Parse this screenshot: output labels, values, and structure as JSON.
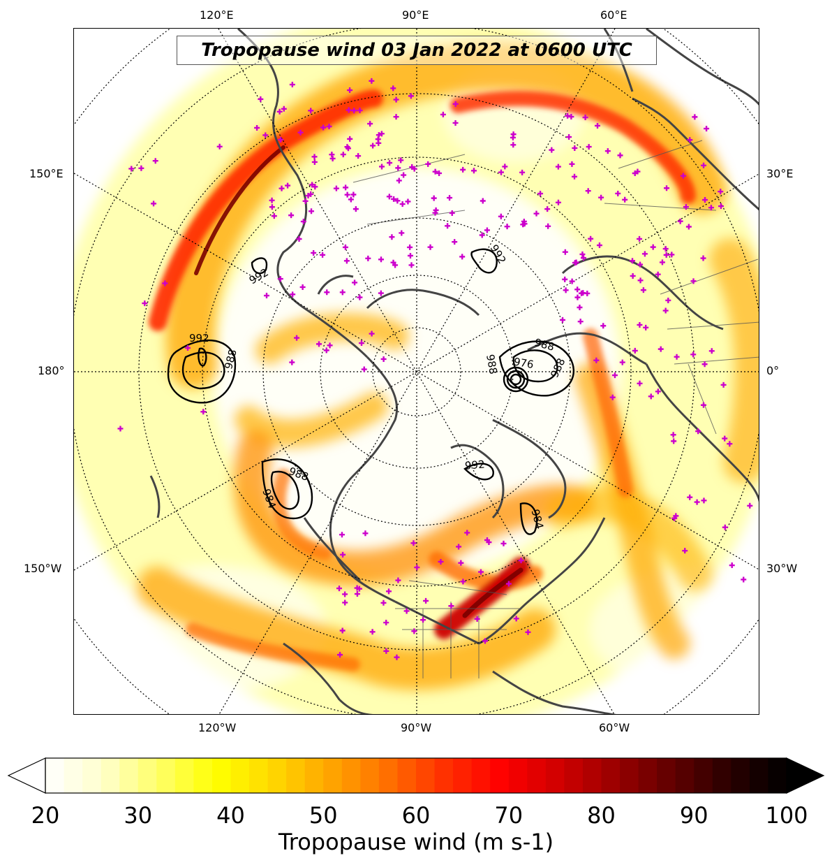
{
  "title": "Tropopause wind 03 Jan 2022 at 0600 UTC",
  "lon_labels": {
    "top": [
      "120°E",
      "90°E",
      "60°E"
    ],
    "left": [
      "150°E",
      "180°",
      "150°W"
    ],
    "right": [
      "30°E",
      "0°",
      "30°W"
    ],
    "bottom": [
      "120°W",
      "90°W",
      "60°W"
    ]
  },
  "pressure_contour_labels": [
    "992",
    "988",
    "992",
    "988",
    "984",
    "988",
    "976",
    "992",
    "988",
    "984",
    "992",
    "988"
  ],
  "colorbar": {
    "label": "Tropopause wind (m s-1)",
    "ticks": [
      "20",
      "30",
      "40",
      "50",
      "60",
      "70",
      "80",
      "90",
      "100"
    ],
    "min": 20,
    "max": 100,
    "step": 2,
    "extend": "both",
    "colormap": [
      "#ffffff",
      "#ffffcc",
      "#ffff66",
      "#ffff00",
      "#ffd700",
      "#ffa500",
      "#ff7000",
      "#ff3000",
      "#ff0000",
      "#d00000",
      "#990000",
      "#600000",
      "#2a0000",
      "#000000"
    ]
  },
  "colors": {
    "coastline": "#444444",
    "station_marker": "#cc00cc",
    "contour": "#000000",
    "jet_core": "#cc0000"
  }
}
